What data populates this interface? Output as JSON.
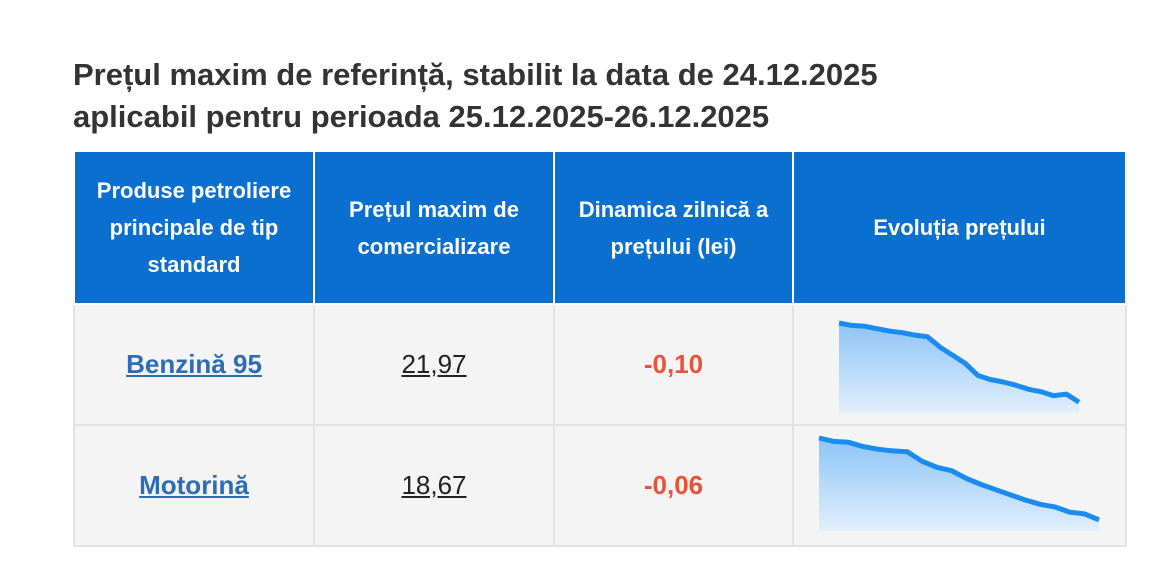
{
  "header": {
    "title_line1": "Prețul maxim de referință, stabilit la data de 24.12.2025",
    "title_line2": "aplicabil pentru perioada 25.12.2025-26.12.2025"
  },
  "table": {
    "columns": [
      "Produse petroliere principale de tip standard",
      "Prețul maxim de comercializare",
      "Dinamica zilnică a prețului (lei)",
      "Evoluția prețului"
    ],
    "rows": [
      {
        "product": "Benzină 95",
        "price": "21,97",
        "change": "-0,10",
        "trend": [
          22.95,
          22.92,
          22.91,
          22.88,
          22.85,
          22.83,
          22.8,
          22.78,
          22.65,
          22.55,
          22.45,
          22.3,
          22.25,
          22.22,
          22.18,
          22.13,
          22.1,
          22.05,
          22.07,
          21.97
        ]
      },
      {
        "product": "Motorină",
        "price": "18,67",
        "change": "-0,06",
        "trend": [
          19.62,
          19.58,
          19.57,
          19.52,
          19.49,
          19.47,
          19.46,
          19.35,
          19.28,
          19.24,
          19.15,
          19.08,
          19.02,
          18.96,
          18.9,
          18.85,
          18.82,
          18.76,
          18.74,
          18.67
        ]
      }
    ]
  }
}
